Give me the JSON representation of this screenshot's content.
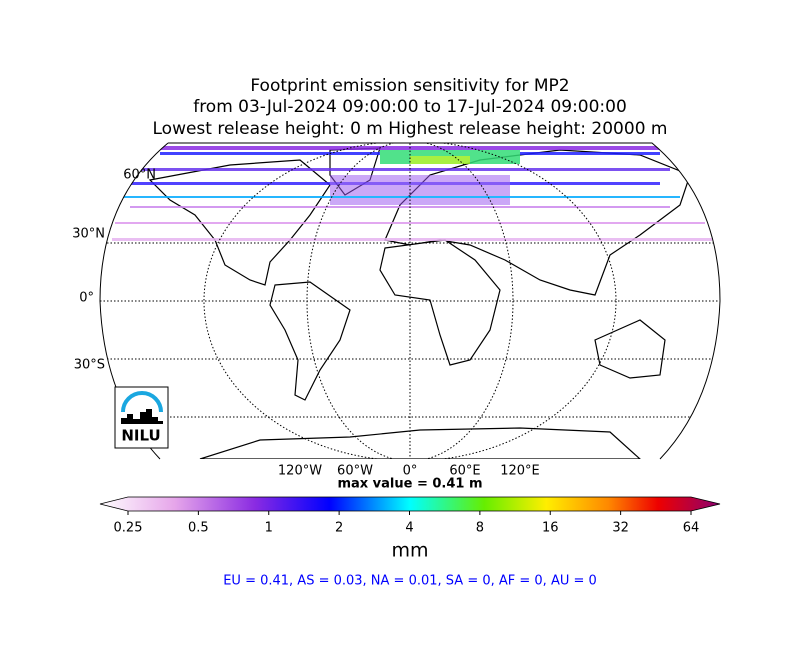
{
  "title_lines": [
    "Footprint emission sensitivity for MP2",
    "from 03-Jul-2024 09:00:00 to 17-Jul-2024 09:00:00",
    "Lowest release height: 0 m      Highest release height: 20000 m"
  ],
  "lat_labels": [
    "60°N",
    "30°N",
    "0°",
    "30°S"
  ],
  "lon_labels": [
    "120°W",
    "60°W",
    "0°",
    "60°E",
    "120°E"
  ],
  "max_value_label": "max value = 0.41 m",
  "colorbar": {
    "ticks": [
      0.25,
      0.5,
      1,
      2,
      4,
      8,
      16,
      32,
      64
    ],
    "lim": [
      0.25,
      64
    ],
    "log": true,
    "label": "mm"
  },
  "summary": "EU = 0.41,  AS = 0.03,  NA = 0.01,  SA = 0,  AF = 0,  AU = 0",
  "logo": "NILU"
}
